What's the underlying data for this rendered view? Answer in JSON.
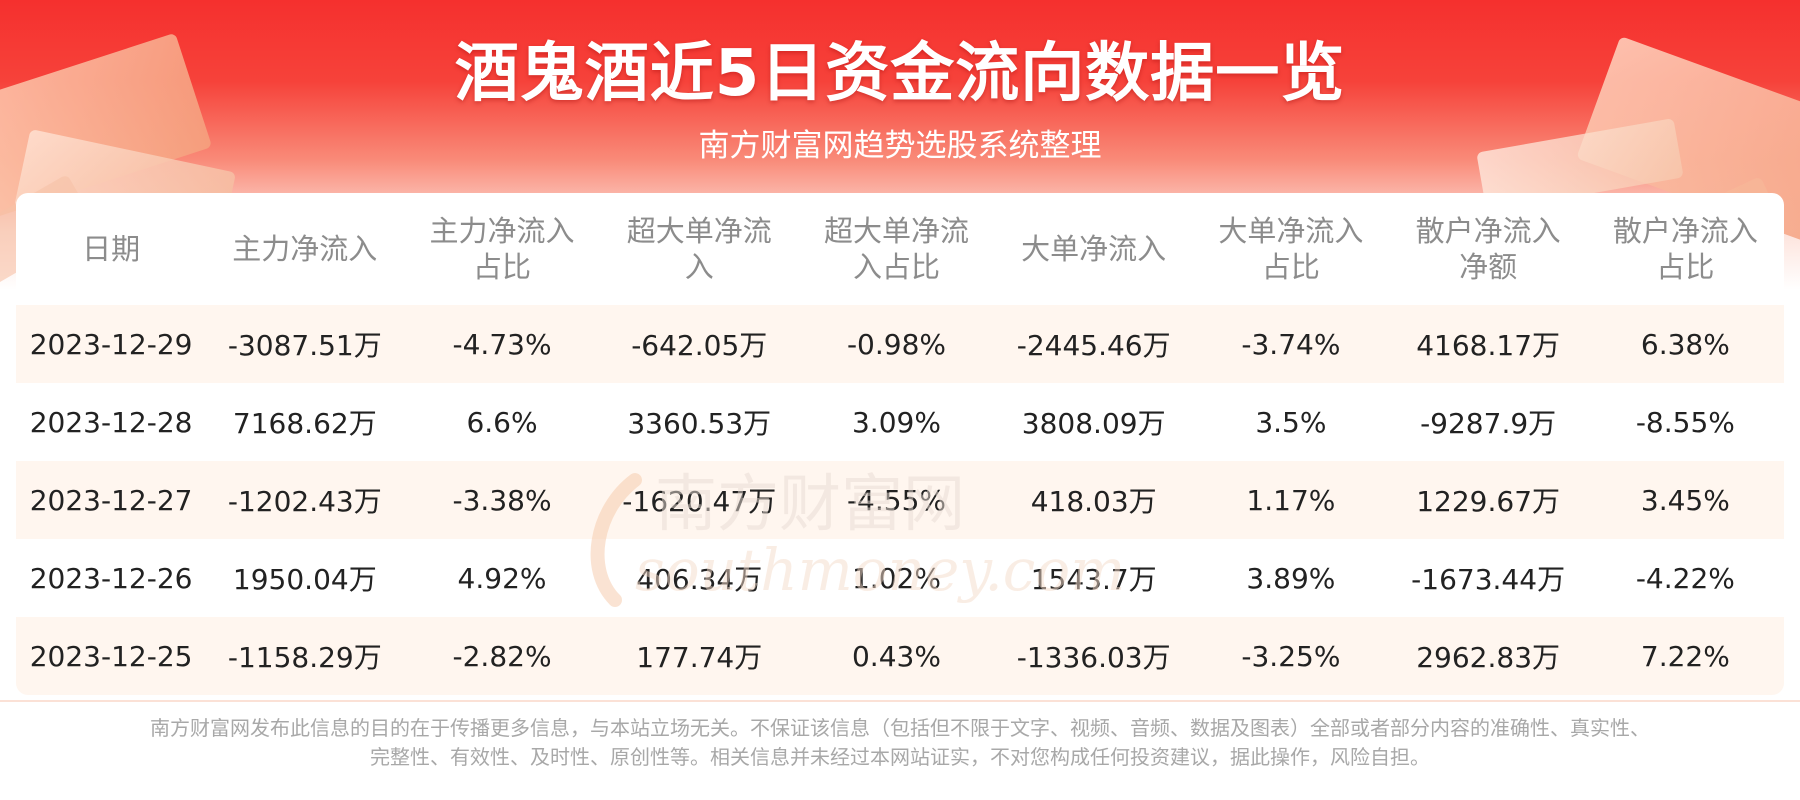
{
  "header": {
    "title": "酒鬼酒近5日资金流向数据一览",
    "subtitle": "南方财富网趋势选股系统整理"
  },
  "watermark": {
    "cn": "南方财富网",
    "en": "southmoney.com"
  },
  "chart_data": {
    "type": "table",
    "columns": [
      [
        "日期"
      ],
      [
        "主力净流入"
      ],
      [
        "主力净流入",
        "占比"
      ],
      [
        "超大单净流",
        "入"
      ],
      [
        "超大单净流",
        "入占比"
      ],
      [
        "大单净流入"
      ],
      [
        "大单净流入",
        "占比"
      ],
      [
        "散户净流入",
        "净额"
      ],
      [
        "散户净流入",
        "占比"
      ]
    ],
    "rows": [
      [
        "2023-12-29",
        "-3087.51万",
        "-4.73%",
        "-642.05万",
        "-0.98%",
        "-2445.46万",
        "-3.74%",
        "4168.17万",
        "6.38%"
      ],
      [
        "2023-12-28",
        "7168.62万",
        "6.6%",
        "3360.53万",
        "3.09%",
        "3808.09万",
        "3.5%",
        "-9287.9万",
        "-8.55%"
      ],
      [
        "2023-12-27",
        "-1202.43万",
        "-3.38%",
        "-1620.47万",
        "-4.55%",
        "418.03万",
        "1.17%",
        "1229.67万",
        "3.45%"
      ],
      [
        "2023-12-26",
        "1950.04万",
        "4.92%",
        "406.34万",
        "1.02%",
        "1543.7万",
        "3.89%",
        "-1673.44万",
        "-4.22%"
      ],
      [
        "2023-12-25",
        "-1158.29万",
        "-2.82%",
        "177.74万",
        "0.43%",
        "-1336.03万",
        "-3.25%",
        "2962.83万",
        "7.22%"
      ]
    ]
  },
  "footer": {
    "line1": "南方财富网发布此信息的目的在于传播更多信息，与本站立场无关。不保证该信息（包括但不限于文字、视频、音频、数据及图表）全部或者部分内容的准确性、真实性、",
    "line2": "完整性、有效性、及时性、原创性等。相关信息并未经过本网站证实，不对您构成任何投资建议，据此操作，风险自担。"
  },
  "colors": {
    "banner_red": "#f5302e",
    "row_stripe": "#fff4ec",
    "header_text": "#8c8c8c",
    "cell_text": "#222222"
  }
}
